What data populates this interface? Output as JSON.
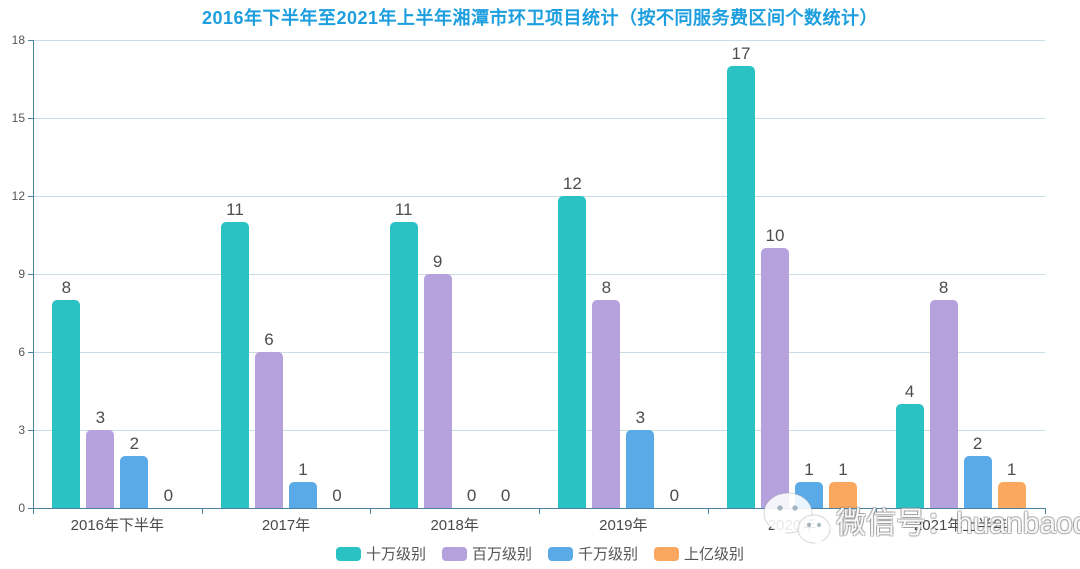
{
  "title": {
    "text": "2016年下半年至2021年上半年湘潭市环卫项目统计（按不同服务费区间个数统计）",
    "color": "#1d9ede"
  },
  "chart_data": {
    "type": "bar",
    "title": "2016年下半年至2021年上半年湘潭市环卫项目统计（按不同服务费区间个数统计）",
    "categories": [
      "2016年下半年",
      "2017年",
      "2018年",
      "2019年",
      "2020年",
      "2021年上半年"
    ],
    "series": [
      {
        "name": "十万级别",
        "color": "#2bc2c4",
        "values": [
          8,
          11,
          11,
          12,
          17,
          4
        ]
      },
      {
        "name": "百万级别",
        "color": "#b5a1dc",
        "values": [
          3,
          6,
          9,
          8,
          10,
          8
        ]
      },
      {
        "name": "千万级别",
        "color": "#5aaae8",
        "values": [
          2,
          1,
          0,
          3,
          1,
          2
        ]
      },
      {
        "name": "上亿级别",
        "color": "#faa860",
        "values": [
          0,
          0,
          0,
          0,
          1,
          1
        ]
      }
    ],
    "y_ticks": [
      0,
      3,
      6,
      9,
      12,
      15,
      18
    ],
    "ylim": [
      0,
      18
    ],
    "xlabel": "",
    "ylabel": "",
    "grid": true,
    "legend_position": "bottom",
    "value_labels": true
  },
  "style": {
    "axis_color": "#4a84a0",
    "grid_color": "#c9dde6",
    "value_label_color": "#4d4d4d",
    "axis_label_color": "#4a4a4a",
    "tick_label_color": "#555555"
  },
  "watermark": {
    "icon": "wechat-icon",
    "text": "微信号：huanbaoq"
  }
}
